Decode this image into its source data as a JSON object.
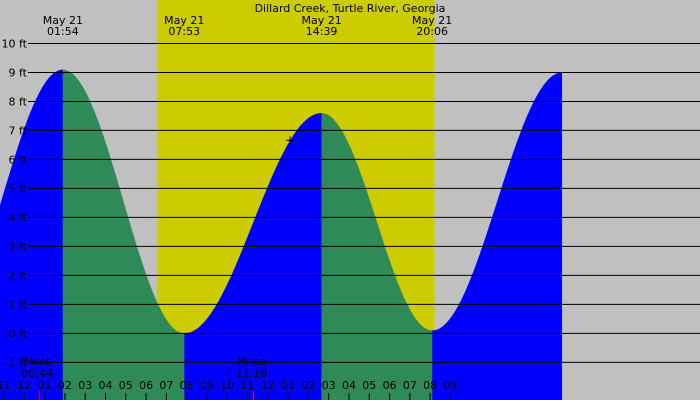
{
  "chart_data": {
    "type": "area",
    "title": "Dillard Creek, Turtle River, Georgia",
    "xlabel": "",
    "ylabel": "",
    "x_range_hours": [
      -1.2,
      33.3
    ],
    "ylim": [
      -2.3,
      11.5
    ],
    "y_ticks": [
      {
        "value": 10,
        "label": "10 ft"
      },
      {
        "value": 9,
        "label": "9 ft"
      },
      {
        "value": 8,
        "label": "8 ft"
      },
      {
        "value": 7,
        "label": "7 ft"
      },
      {
        "value": 6,
        "label": "6 ft"
      },
      {
        "value": 5,
        "label": "5 ft"
      },
      {
        "value": 4,
        "label": "4 ft"
      },
      {
        "value": 3,
        "label": "3 ft"
      },
      {
        "value": 2,
        "label": "2 ft"
      },
      {
        "value": 1,
        "label": "1 ft"
      },
      {
        "value": 0,
        "label": "0 ft"
      },
      {
        "value": -1,
        "label": "-1 ft"
      }
    ],
    "x_ticks": [
      {
        "hour": -1,
        "label": "11"
      },
      {
        "hour": 0,
        "label": "12"
      },
      {
        "hour": 1,
        "label": "01"
      },
      {
        "hour": 2,
        "label": "02"
      },
      {
        "hour": 3,
        "label": "03"
      },
      {
        "hour": 4,
        "label": "04"
      },
      {
        "hour": 5,
        "label": "05"
      },
      {
        "hour": 6,
        "label": "06"
      },
      {
        "hour": 7,
        "label": "07"
      },
      {
        "hour": 8,
        "label": "08"
      },
      {
        "hour": 9,
        "label": "09"
      },
      {
        "hour": 10,
        "label": "10"
      },
      {
        "hour": 11,
        "label": "11"
      },
      {
        "hour": 12,
        "label": "12"
      },
      {
        "hour": 13,
        "label": "01"
      },
      {
        "hour": 14,
        "label": "02"
      },
      {
        "hour": 15,
        "label": "03"
      },
      {
        "hour": 16,
        "label": "04"
      },
      {
        "hour": 17,
        "label": "05"
      },
      {
        "hour": 18,
        "label": "06"
      },
      {
        "hour": 19,
        "label": "07"
      },
      {
        "hour": 20,
        "label": "08"
      },
      {
        "hour": 21,
        "label": "09"
      }
    ],
    "tide_extremes": [
      {
        "type": "low",
        "hour": -4.15,
        "height": 0.1,
        "date": "",
        "time": ""
      },
      {
        "type": "high",
        "hour": 1.9,
        "height": 9.1,
        "date": "May 21",
        "time": "01:54"
      },
      {
        "type": "low",
        "hour": 7.88,
        "height": 0.0,
        "date": "May 21",
        "time": "07:53"
      },
      {
        "type": "high",
        "hour": 14.65,
        "height": 7.6,
        "date": "May 21",
        "time": "14:39"
      },
      {
        "type": "low",
        "hour": 20.1,
        "height": 0.1,
        "date": "May 21",
        "time": "20:06"
      },
      {
        "type": "high",
        "hour": 26.5,
        "height": 9.0,
        "date": "",
        "time": ""
      }
    ],
    "daylight": {
      "sunrise_hour": 6.55,
      "sunset_hour": 20.22
    },
    "moon_events": [
      {
        "label": "Mset",
        "time": "00:44",
        "hour": 0.733
      },
      {
        "label": "Mrise",
        "time": "11:18",
        "hour": 11.3
      }
    ],
    "current_time_hour": 13.1,
    "colors": {
      "night": "#c0c0c0",
      "day": "#cccc00",
      "rising": "#0000ff",
      "falling": "#2e8b57",
      "grid": "#000000",
      "moon_marker": "#ff0000"
    }
  }
}
